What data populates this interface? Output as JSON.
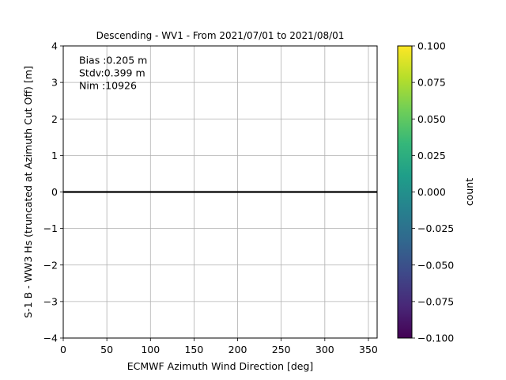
{
  "chart_data": {
    "type": "heatmap",
    "title": "Descending - WV1 - From 2021/07/01 to 2021/08/01",
    "xlabel": "ECMWF Azimuth Wind Direction [deg]",
    "ylabel": "S-1 B - WW3 Hs (truncated at Azimuth Cut Off) [m]",
    "xlim": [
      0,
      360
    ],
    "ylim": [
      -4,
      4
    ],
    "xticks": [
      "0",
      "50",
      "100",
      "150",
      "200",
      "250",
      "300",
      "350"
    ],
    "yticks": [
      "−4",
      "−3",
      "−2",
      "−1",
      "0",
      "1",
      "2",
      "3",
      "4"
    ],
    "grid": true,
    "reference_line": {
      "y": 0,
      "color": "#000000"
    },
    "annotations": [
      "Bias :0.205 m",
      "Stdv:0.399 m",
      "Nim :10926"
    ],
    "stats": {
      "bias_m": 0.205,
      "stdv_m": 0.399,
      "nim": 10926
    },
    "cells": [],
    "colorbar": {
      "label": "count",
      "colormap": "viridis",
      "range": [
        -0.1,
        0.1
      ],
      "ticks": [
        "−0.100",
        "−0.075",
        "−0.050",
        "−0.025",
        "0.000",
        "0.025",
        "0.050",
        "0.075",
        "0.100"
      ],
      "colors": [
        "#440154",
        "#482878",
        "#3e4989",
        "#31688e",
        "#26828e",
        "#1f9e89",
        "#35b779",
        "#6ece58",
        "#b5de2b",
        "#fde725"
      ]
    }
  }
}
